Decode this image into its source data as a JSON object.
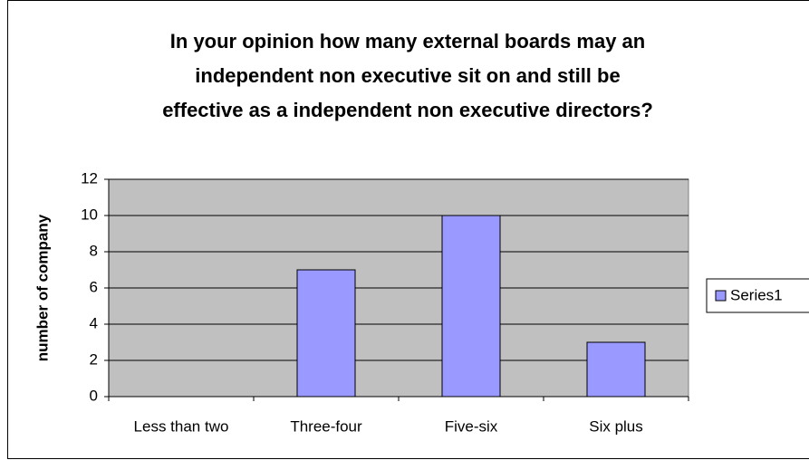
{
  "chart_data": {
    "type": "bar",
    "title": [
      "In your opinion how many external boards may an",
      "independent non executive sit on and still be",
      "effective as a independent non executive directors?"
    ],
    "y_label": "number of company",
    "categories": [
      "Less than two",
      "Three-four",
      "Five-six",
      "Six plus"
    ],
    "series": [
      {
        "name": "Series1",
        "color": "#9999ff",
        "values": [
          0,
          7,
          10,
          3
        ]
      }
    ],
    "ylim": [
      0,
      12
    ],
    "yticks": [
      0,
      2,
      4,
      6,
      8,
      10,
      12
    ],
    "grid": true,
    "legend": "right"
  }
}
